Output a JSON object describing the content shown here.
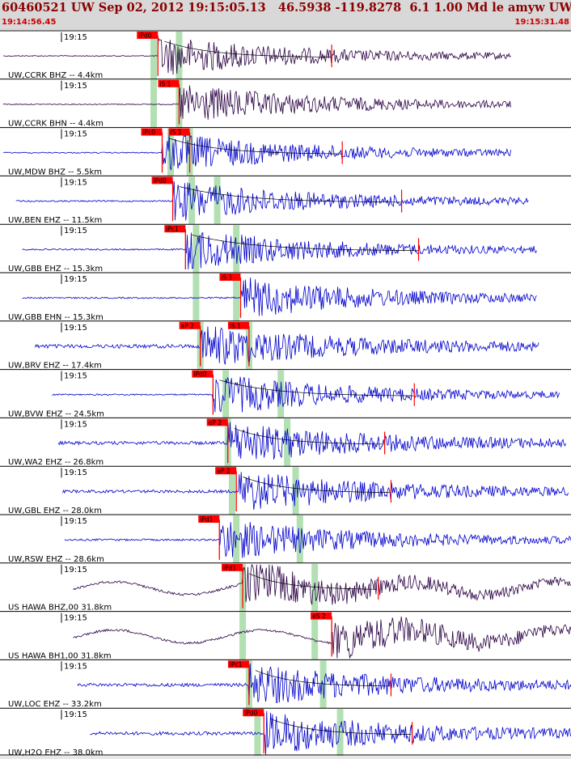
{
  "header": {
    "title": "60460521 UW Sep 02, 2012 19:15:05.13   46.5938 -119.8278  6.1 1.00 Md le amyw UW 01   5",
    "start_time": "19:14:56.45",
    "end_time": "19:15:31.48"
  },
  "colors": {
    "trace_blue": "#0000cc",
    "trace_purple": "#2a0044",
    "pick_red": "#ff0000",
    "window_green": "#b3e0b3",
    "coda_curve": "#000000"
  },
  "traces": [
    {
      "label": "UW,CCRK BHZ -- 4.4km",
      "time_tick": "19:15",
      "color": "purple",
      "picks": [
        {
          "text": "iPd0",
          "t": 7.3
        }
      ],
      "coda_t": 15.5,
      "green": [
        7.1,
        8.3
      ],
      "start": 0.0,
      "end": 24.0,
      "noise": 0.1
    },
    {
      "label": "UW,CCRK BHN -- 4.4km",
      "time_tick": "19:15",
      "color": "purple",
      "picks": [
        {
          "text": "iS 1",
          "t": 8.3
        }
      ],
      "coda_t": null,
      "green": [
        7.1,
        8.3
      ],
      "start": 0.0,
      "end": 24.0,
      "noise": 0.1
    },
    {
      "label": "UW,MDW BHZ -- 5.5km",
      "time_tick": "19:15",
      "color": "blue",
      "picks": [
        {
          "text": "iPc0",
          "t": 7.5
        },
        {
          "text": "iS 1",
          "t": 8.8
        }
      ],
      "coda_t": 16.0,
      "green": [
        7.9,
        8.8
      ],
      "start": 0.0,
      "end": 24.0,
      "noise": 0.12
    },
    {
      "label": "UW,BEN EHZ -- 11.5km",
      "time_tick": "19:15",
      "color": "blue",
      "picks": [
        {
          "text": "iPd0",
          "t": 8.0
        }
      ],
      "coda_t": 18.8,
      "green": [
        8.9,
        10.1
      ],
      "start": 0.6,
      "end": 24.8,
      "noise": 0.15
    },
    {
      "label": "UW,GBB EHZ -- 15.3km",
      "time_tick": "19:15",
      "color": "blue",
      "picks": [
        {
          "text": "iPc1",
          "t": 8.6
        }
      ],
      "coda_t": 19.6,
      "green": [
        9.1,
        11.0
      ],
      "start": 0.9,
      "end": 25.2,
      "noise": 0.15
    },
    {
      "label": "UW,GBB EHN -- 15.3km",
      "time_tick": "19:15",
      "color": "blue",
      "picks": [
        {
          "text": "iS 1",
          "t": 11.2
        }
      ],
      "coda_t": null,
      "green": [
        9.1,
        11.0
      ],
      "start": 0.9,
      "end": 25.2,
      "noise": 0.15
    },
    {
      "label": "UW,BRV EHZ -- 17.4km",
      "time_tick": "19:15",
      "color": "blue",
      "picks": [
        {
          "text": "eP 2",
          "t": 9.3
        },
        {
          "text": "iS 1",
          "t": 11.6
        }
      ],
      "coda_t": null,
      "green": [
        9.3,
        11.6
      ],
      "start": 1.5,
      "end": 25.3,
      "noise": 0.4
    },
    {
      "label": "UW,BVW EHZ -- 24.5km",
      "time_tick": "19:15",
      "color": "blue",
      "picks": [
        {
          "text": "iPd0",
          "t": 9.9
        }
      ],
      "coda_t": 19.4,
      "green": [
        10.5,
        13.1
      ],
      "start": 2.3,
      "end": 26.3,
      "noise": 0.15
    },
    {
      "label": "UW,WA2 EHZ -- 26.8km",
      "time_tick": "19:15",
      "color": "blue",
      "picks": [
        {
          "text": "eP 2",
          "t": 10.6
        }
      ],
      "coda_t": 18.0,
      "green": [
        10.6,
        13.4
      ],
      "start": 2.6,
      "end": 26.6,
      "noise": 0.35
    },
    {
      "label": "UW,GBL EHZ -- 28.0km",
      "time_tick": "19:15",
      "color": "blue",
      "picks": [
        {
          "text": "eP 2",
          "t": 11.0
        }
      ],
      "coda_t": 18.3,
      "green": [
        10.8,
        13.8
      ],
      "start": 2.8,
      "end": 26.7,
      "noise": 0.3
    },
    {
      "label": "UW,RSW EHZ -- 28.6km",
      "time_tick": "19:15",
      "color": "blue",
      "picks": [
        {
          "text": "iPd1",
          "t": 10.2
        }
      ],
      "coda_t": null,
      "green": [
        11.0,
        14.0
      ],
      "start": 2.9,
      "end": 27.9,
      "noise": 0.2
    },
    {
      "label": "US HAWA BHZ,00 31.8km",
      "time_tick": "19:15",
      "color": "purple",
      "picks": [
        {
          "text": "iPd1",
          "t": 11.3
        }
      ],
      "coda_t": 17.7,
      "green": [
        11.3,
        14.7
      ],
      "start": 3.3,
      "end": 27.2,
      "noise": 0.25
    },
    {
      "label": "US HAWA BH1,00 31.8km",
      "time_tick": "19:15",
      "color": "purple",
      "picks": [
        {
          "text": "eS 2",
          "t": 15.5
        }
      ],
      "coda_t": null,
      "green": [
        11.3,
        14.7
      ],
      "start": 3.3,
      "end": 27.4,
      "noise": 0.25
    },
    {
      "label": "UW,LOC EHZ -- 33.2km",
      "time_tick": "19:15",
      "color": "blue",
      "picks": [
        {
          "text": "iPc1",
          "t": 11.6
        }
      ],
      "coda_t": 18.3,
      "green": [
        11.6,
        15.1
      ],
      "start": 3.5,
      "end": 27.5,
      "noise": 0.35
    },
    {
      "label": "UW,H2O EHZ -- 38.0km",
      "time_tick": "19:15",
      "color": "blue",
      "picks": [
        {
          "text": "iPd0",
          "t": 12.3
        }
      ],
      "coda_t": 19.3,
      "green": [
        12.0,
        15.9
      ],
      "start": 4.1,
      "end": 28.0,
      "noise": 0.35
    }
  ]
}
